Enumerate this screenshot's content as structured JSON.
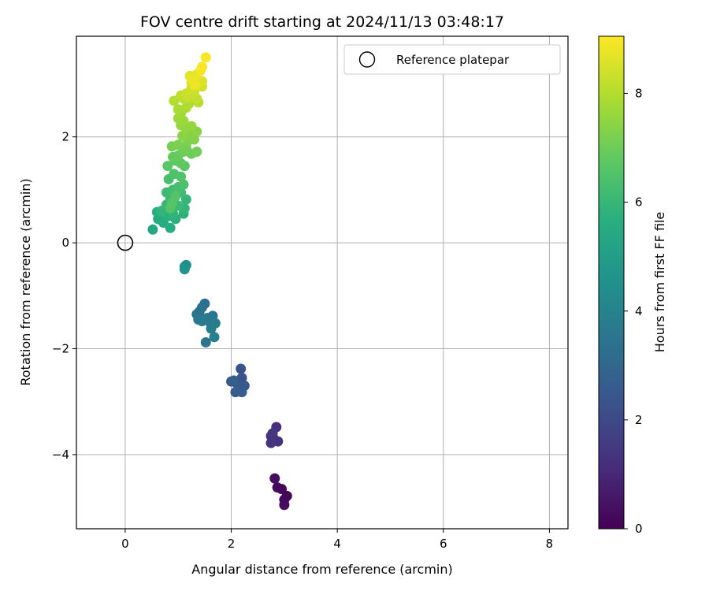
{
  "chart_data": {
    "type": "scatter",
    "title": "FOV centre drift starting at 2024/11/13 03:48:17",
    "xlabel": "Angular distance from reference (arcmin)",
    "ylabel": "Rotation from reference (arcmin)",
    "xlim": [
      -0.92,
      8.35
    ],
    "ylim": [
      -5.4,
      3.9
    ],
    "xticks": [
      0,
      2,
      4,
      6,
      8
    ],
    "yticks": [
      -4,
      -2,
      0,
      2
    ],
    "grid": true,
    "legend": {
      "position": "top-right",
      "entries": [
        {
          "label": "Reference platepar",
          "marker": "open-circle"
        }
      ]
    },
    "reference_point": {
      "x": 0,
      "y": 0
    },
    "colorbar": {
      "label": "Hours from first FF file",
      "colormap": "viridis",
      "range": [
        0,
        9.05
      ],
      "ticks": [
        0,
        2,
        4,
        6,
        8
      ]
    },
    "series": [
      {
        "points": [
          [
            3.05,
            -4.78,
            0.05
          ],
          [
            2.95,
            -4.65,
            0.1
          ],
          [
            3.0,
            -4.85,
            0.15
          ],
          [
            2.87,
            -4.62,
            0.2
          ],
          [
            3.0,
            -4.95,
            0.25
          ],
          [
            2.82,
            -4.45,
            0.3
          ],
          [
            2.85,
            -3.48,
            1.15
          ],
          [
            2.75,
            -3.65,
            1.2
          ],
          [
            2.8,
            -3.7,
            1.25
          ],
          [
            2.88,
            -3.75,
            1.3
          ],
          [
            2.75,
            -3.78,
            1.35
          ],
          [
            2.78,
            -3.6,
            1.4
          ],
          [
            2.18,
            -2.38,
            2.3
          ],
          [
            2.2,
            -2.55,
            2.35
          ],
          [
            2.0,
            -2.62,
            2.4
          ],
          [
            2.1,
            -2.65,
            2.45
          ],
          [
            2.25,
            -2.7,
            2.5
          ],
          [
            2.15,
            -2.75,
            2.55
          ],
          [
            2.2,
            -2.82,
            2.6
          ],
          [
            2.08,
            -2.82,
            2.65
          ],
          [
            2.05,
            -2.6,
            2.7
          ],
          [
            1.5,
            -1.15,
            3.3
          ],
          [
            1.45,
            -1.22,
            3.35
          ],
          [
            1.4,
            -1.3,
            3.4
          ],
          [
            1.35,
            -1.35,
            3.45
          ],
          [
            1.65,
            -1.38,
            3.5
          ],
          [
            1.5,
            -1.45,
            3.55
          ],
          [
            1.6,
            -1.5,
            3.6
          ],
          [
            1.55,
            -1.42,
            3.65
          ],
          [
            1.45,
            -1.48,
            3.7
          ],
          [
            1.7,
            -1.52,
            3.75
          ],
          [
            1.62,
            -1.62,
            3.8
          ],
          [
            1.68,
            -1.78,
            3.85
          ],
          [
            1.52,
            -1.88,
            3.5
          ],
          [
            1.38,
            -1.45,
            3.6
          ],
          [
            1.15,
            -0.42,
            4.45
          ],
          [
            1.12,
            -0.45,
            4.5
          ],
          [
            1.12,
            -0.5,
            4.55
          ],
          [
            0.52,
            0.25,
            5.4
          ],
          [
            0.62,
            0.45,
            5.5
          ],
          [
            0.72,
            0.38,
            5.55
          ],
          [
            0.85,
            0.28,
            5.6
          ],
          [
            0.6,
            0.58,
            5.65
          ],
          [
            0.8,
            0.5,
            5.7
          ],
          [
            0.95,
            0.45,
            5.75
          ],
          [
            1.1,
            0.55,
            5.8
          ],
          [
            0.9,
            0.55,
            5.85
          ],
          [
            0.68,
            0.6,
            5.9
          ],
          [
            1.12,
            0.65,
            5.95
          ],
          [
            1.15,
            0.82,
            5.95
          ],
          [
            0.78,
            0.72,
            6.0
          ],
          [
            1.0,
            0.7,
            6.05
          ],
          [
            0.85,
            0.82,
            6.1
          ],
          [
            0.78,
            0.95,
            6.15
          ],
          [
            1.05,
            0.95,
            6.2
          ],
          [
            0.9,
            1.0,
            6.25
          ],
          [
            1.0,
            1.05,
            6.3
          ],
          [
            0.82,
            1.2,
            6.35
          ],
          [
            1.1,
            1.1,
            6.4
          ],
          [
            0.92,
            1.3,
            6.45
          ],
          [
            1.05,
            1.25,
            6.5
          ],
          [
            0.95,
            0.88,
            6.55
          ],
          [
            0.85,
            0.65,
            6.55
          ],
          [
            0.88,
            0.75,
            6.6
          ],
          [
            0.8,
            1.45,
            6.65
          ],
          [
            1.12,
            1.45,
            6.7
          ],
          [
            0.95,
            1.55,
            6.75
          ],
          [
            1.05,
            1.5,
            6.8
          ],
          [
            0.9,
            1.62,
            6.85
          ],
          [
            1.0,
            1.65,
            6.9
          ],
          [
            1.25,
            1.68,
            6.95
          ],
          [
            1.1,
            1.72,
            7.0
          ],
          [
            1.35,
            1.72,
            7.05
          ],
          [
            1.15,
            1.8,
            7.1
          ],
          [
            0.88,
            1.82,
            7.15
          ],
          [
            1.0,
            1.85,
            7.2
          ],
          [
            1.18,
            1.92,
            7.25
          ],
          [
            1.3,
            1.95,
            7.3
          ],
          [
            1.25,
            2.02,
            7.35
          ],
          [
            1.08,
            2.02,
            7.4
          ],
          [
            1.35,
            2.1,
            7.45
          ],
          [
            1.15,
            2.15,
            7.5
          ],
          [
            1.25,
            2.2,
            7.55
          ],
          [
            1.05,
            2.22,
            7.6
          ],
          [
            1.1,
            2.3,
            7.65
          ],
          [
            1.0,
            2.35,
            7.7
          ],
          [
            1.05,
            2.45,
            7.75
          ],
          [
            1.0,
            2.52,
            7.85
          ],
          [
            1.15,
            2.55,
            7.9
          ],
          [
            1.2,
            2.62,
            7.95
          ],
          [
            0.92,
            2.68,
            8.0
          ],
          [
            1.38,
            2.65,
            8.05
          ],
          [
            1.1,
            2.72,
            8.1
          ],
          [
            1.05,
            2.78,
            8.15
          ],
          [
            1.35,
            2.72,
            8.2
          ],
          [
            1.2,
            2.75,
            8.25
          ],
          [
            1.15,
            2.82,
            8.3
          ],
          [
            1.3,
            2.85,
            8.35
          ],
          [
            1.25,
            2.92,
            8.4
          ],
          [
            1.45,
            2.95,
            8.45
          ],
          [
            1.38,
            3.0,
            8.5
          ],
          [
            1.25,
            3.02,
            8.55
          ],
          [
            1.45,
            3.05,
            8.6
          ],
          [
            1.3,
            3.12,
            8.65
          ],
          [
            1.22,
            3.15,
            8.7
          ],
          [
            1.35,
            3.18,
            8.75
          ],
          [
            1.28,
            3.08,
            8.8
          ],
          [
            1.32,
            2.98,
            8.85
          ],
          [
            1.42,
            3.25,
            8.9
          ],
          [
            1.45,
            3.32,
            8.95
          ],
          [
            1.52,
            3.5,
            9.0
          ]
        ]
      }
    ]
  }
}
